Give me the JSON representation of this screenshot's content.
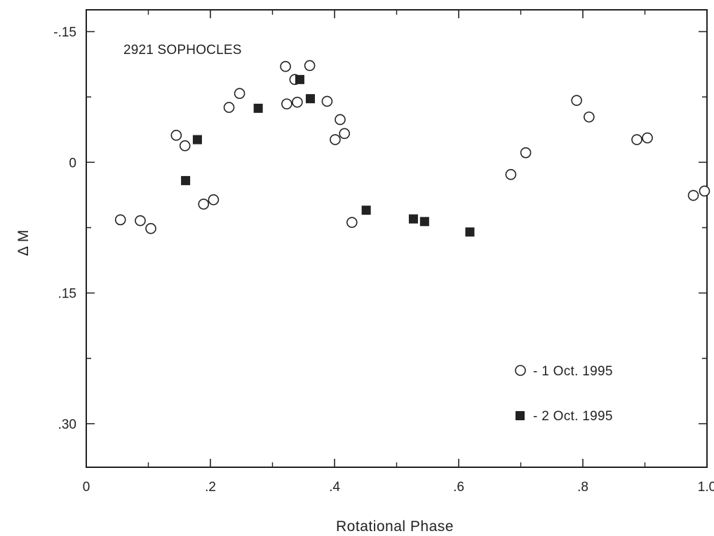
{
  "chart_data": {
    "type": "scatter",
    "title": "2921 SOPHOCLES",
    "xlabel": "Rotational Phase",
    "ylabel": "Δ M",
    "xlim": [
      0,
      1.0
    ],
    "ylim": [
      0.35,
      -0.175
    ],
    "y_inverted": true,
    "grid": false,
    "legend_position": "bottom-right",
    "x_ticks": [
      {
        "value": 0,
        "label": "0"
      },
      {
        "value": 0.2,
        "label": ".2"
      },
      {
        "value": 0.4,
        "label": ".4"
      },
      {
        "value": 0.6,
        "label": ".6"
      },
      {
        "value": 0.8,
        "label": ".8"
      },
      {
        "value": 1.0,
        "label": "1.0"
      }
    ],
    "y_ticks": [
      {
        "value": -0.15,
        "label": "-.15"
      },
      {
        "value": 0,
        "label": "0"
      },
      {
        "value": 0.15,
        "label": ".15"
      },
      {
        "value": 0.3,
        "label": ".30"
      }
    ],
    "series": [
      {
        "name": "- 1 Oct. 1995",
        "marker": "open-circle",
        "points": [
          {
            "x": 0.055,
            "y": 0.066
          },
          {
            "x": 0.087,
            "y": 0.067
          },
          {
            "x": 0.104,
            "y": 0.076
          },
          {
            "x": 0.145,
            "y": -0.031
          },
          {
            "x": 0.159,
            "y": -0.019
          },
          {
            "x": 0.189,
            "y": 0.048
          },
          {
            "x": 0.205,
            "y": 0.043
          },
          {
            "x": 0.23,
            "y": -0.063
          },
          {
            "x": 0.247,
            "y": -0.079
          },
          {
            "x": 0.321,
            "y": -0.11
          },
          {
            "x": 0.323,
            "y": -0.067
          },
          {
            "x": 0.336,
            "y": -0.095
          },
          {
            "x": 0.34,
            "y": -0.069
          },
          {
            "x": 0.36,
            "y": -0.111
          },
          {
            "x": 0.388,
            "y": -0.07
          },
          {
            "x": 0.401,
            "y": -0.026
          },
          {
            "x": 0.409,
            "y": -0.049
          },
          {
            "x": 0.416,
            "y": -0.033
          },
          {
            "x": 0.428,
            "y": 0.069
          },
          {
            "x": 0.684,
            "y": 0.014
          },
          {
            "x": 0.708,
            "y": -0.011
          },
          {
            "x": 0.79,
            "y": -0.071
          },
          {
            "x": 0.81,
            "y": -0.052
          },
          {
            "x": 0.887,
            "y": -0.026
          },
          {
            "x": 0.904,
            "y": -0.028
          },
          {
            "x": 0.978,
            "y": 0.038
          },
          {
            "x": 0.996,
            "y": 0.033
          }
        ]
      },
      {
        "name": "- 2 Oct. 1995",
        "marker": "filled-square",
        "points": [
          {
            "x": 0.16,
            "y": 0.021
          },
          {
            "x": 0.179,
            "y": -0.026
          },
          {
            "x": 0.277,
            "y": -0.062
          },
          {
            "x": 0.344,
            "y": -0.095
          },
          {
            "x": 0.361,
            "y": -0.073
          },
          {
            "x": 0.451,
            "y": 0.055
          },
          {
            "x": 0.527,
            "y": 0.065
          },
          {
            "x": 0.545,
            "y": 0.068
          },
          {
            "x": 0.618,
            "y": 0.08
          }
        ]
      }
    ]
  }
}
